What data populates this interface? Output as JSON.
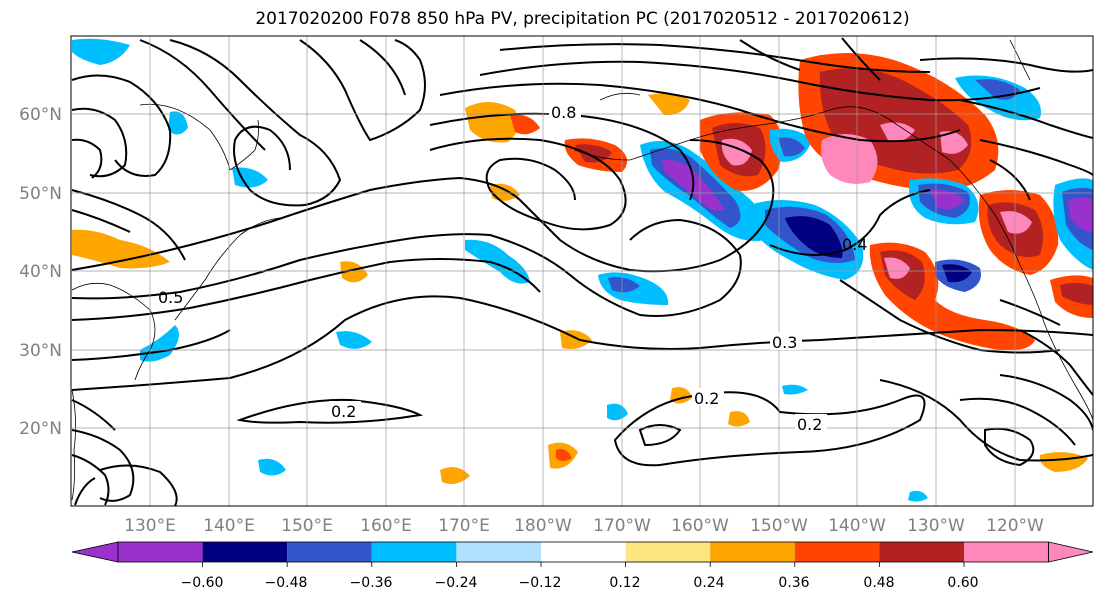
{
  "title": "2017020200 F078 850 hPa PV, precipitation PC (2017020512 - 2017020612)",
  "map": {
    "lon_labels": [
      "130°E",
      "140°E",
      "150°E",
      "160°E",
      "170°E",
      "180°W",
      "170°W",
      "160°W",
      "150°W",
      "140°W",
      "130°W",
      "120°W"
    ],
    "lat_labels": [
      "60°N",
      "50°N",
      "40°N",
      "30°N",
      "20°N"
    ],
    "contour_labels": [
      "0.8",
      "0.2",
      "0.3",
      "0.2",
      "0.2",
      "0.4",
      "0.5"
    ],
    "grid": true
  },
  "colorbar": {
    "tick_labels": [
      "−0.60",
      "−0.48",
      "−0.36",
      "−0.24",
      "−0.12",
      "0.12",
      "0.24",
      "0.36",
      "0.48",
      "0.60"
    ],
    "colors": [
      "#9932cc",
      "#000080",
      "#3355cc",
      "#00bfff",
      "#b0e0ff",
      "#ffffff",
      "#ffe680",
      "#ffa500",
      "#ff4500",
      "#b22222",
      "#ff88bb"
    ],
    "extend": "both"
  },
  "legend_colors": {
    "neg_strong": "#000080",
    "neg_medium": "#3355cc",
    "neg_light": "#00bfff",
    "neg_faint": "#b0e0ff",
    "pos_faint": "#ffe680",
    "pos_light": "#ffa500",
    "pos_medium": "#ff4500",
    "pos_strong": "#b22222",
    "pos_max": "#ff88bb",
    "neg_max": "#9932cc"
  }
}
